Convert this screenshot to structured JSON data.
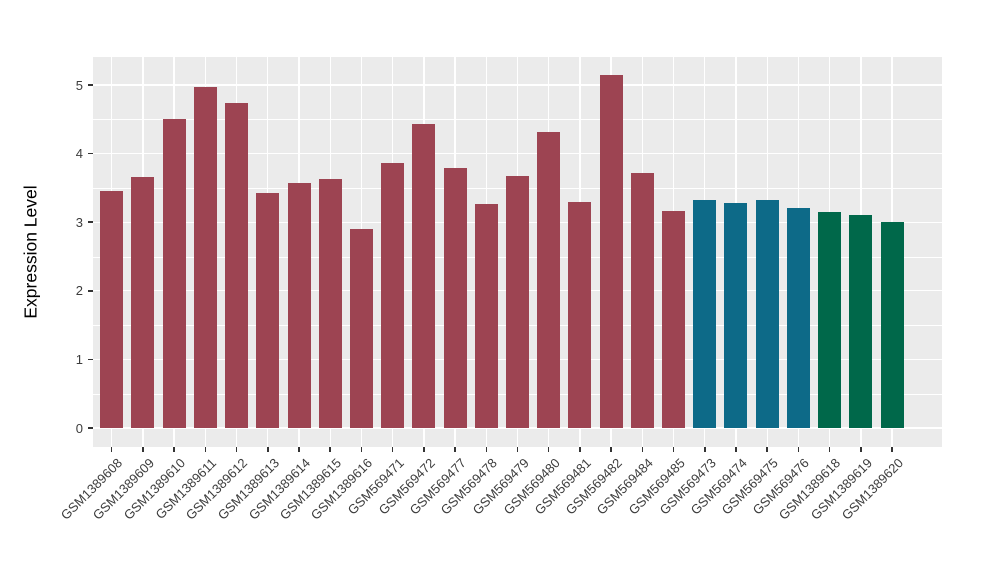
{
  "chart_data": {
    "type": "bar",
    "title": "",
    "xlabel": "",
    "ylabel": "Expression Level",
    "ylim": [
      -0.27,
      5.41
    ],
    "yticks": [
      0,
      1,
      2,
      3,
      4,
      5
    ],
    "yticks_minor": [
      0.5,
      1.5,
      2.5,
      3.5,
      4.5
    ],
    "grid": true,
    "legend_position": "none",
    "panel_bg": "#EBEBEB",
    "grid_color": "#FFFFFF",
    "axis_text_color": "#3C3C3C",
    "categories": [
      "GSM1389608",
      "GSM1389609",
      "GSM1389610",
      "GSM1389611",
      "GSM1389612",
      "GSM1389613",
      "GSM1389614",
      "GSM1389615",
      "GSM1389616",
      "GSM569471",
      "GSM569472",
      "GSM569477",
      "GSM569478",
      "GSM569479",
      "GSM569480",
      "GSM569481",
      "GSM569482",
      "GSM569484",
      "GSM569485",
      "GSM569473",
      "GSM569474",
      "GSM569475",
      "GSM569476",
      "GSM1389618",
      "GSM1389619",
      "GSM1389620"
    ],
    "values": [
      3.46,
      3.66,
      4.5,
      4.97,
      4.74,
      3.43,
      3.57,
      3.63,
      2.9,
      3.86,
      4.43,
      3.79,
      3.26,
      3.68,
      4.31,
      3.3,
      5.15,
      3.72,
      3.16,
      3.32,
      3.28,
      3.33,
      3.2,
      3.15,
      3.11,
      3.0
    ],
    "bar_groups": [
      "red",
      "red",
      "red",
      "red",
      "red",
      "red",
      "red",
      "red",
      "red",
      "red",
      "red",
      "red",
      "red",
      "red",
      "red",
      "red",
      "red",
      "red",
      "red",
      "blue",
      "blue",
      "blue",
      "blue",
      "green",
      "green",
      "green"
    ],
    "group_colors": {
      "red": "#9D4452",
      "blue": "#0D6A88",
      "green": "#00684A"
    }
  }
}
